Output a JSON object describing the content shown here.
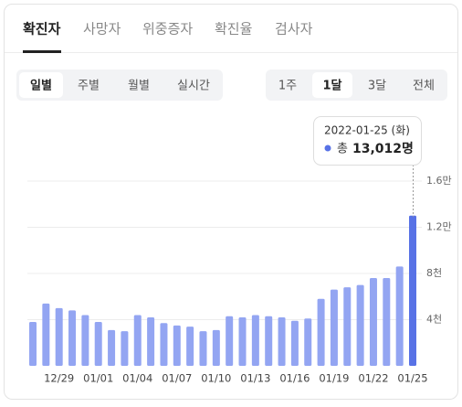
{
  "tabs": [
    "확진자",
    "사망자",
    "위중증자",
    "확진율",
    "검사자"
  ],
  "period_buttons": [
    "일별",
    "주별",
    "월별",
    "실시간"
  ],
  "range_buttons": [
    "1주",
    "1달",
    "3달",
    "전체"
  ],
  "tooltip": {
    "date": "2022-01-25 (화)",
    "prefix": "총",
    "value_label": "13,012명"
  },
  "chart_data": {
    "type": "bar",
    "categories": [
      null,
      null,
      "12/29",
      null,
      null,
      "01/01",
      null,
      null,
      "01/04",
      null,
      null,
      "01/07",
      null,
      null,
      "01/10",
      null,
      null,
      "01/13",
      null,
      null,
      "01/16",
      null,
      null,
      "01/19",
      null,
      null,
      "01/22",
      null,
      null,
      "01/25"
    ],
    "values": [
      3800,
      5400,
      5000,
      4800,
      4400,
      3800,
      3100,
      3000,
      4400,
      4200,
      3700,
      3500,
      3400,
      3000,
      3100,
      4300,
      4200,
      4400,
      4300,
      4200,
      3900,
      4100,
      5800,
      6600,
      6800,
      7000,
      7600,
      7600,
      8600,
      13012
    ],
    "color": "#93a5f2",
    "highlight_color": "#5872e6",
    "ylim": [
      0,
      16000
    ],
    "yticks": [
      {
        "value": 4000,
        "label": "4천"
      },
      {
        "value": 8000,
        "label": "8천"
      },
      {
        "value": 12000,
        "label": "1.2만"
      },
      {
        "value": 16000,
        "label": "1.6만"
      }
    ],
    "grid": true
  }
}
